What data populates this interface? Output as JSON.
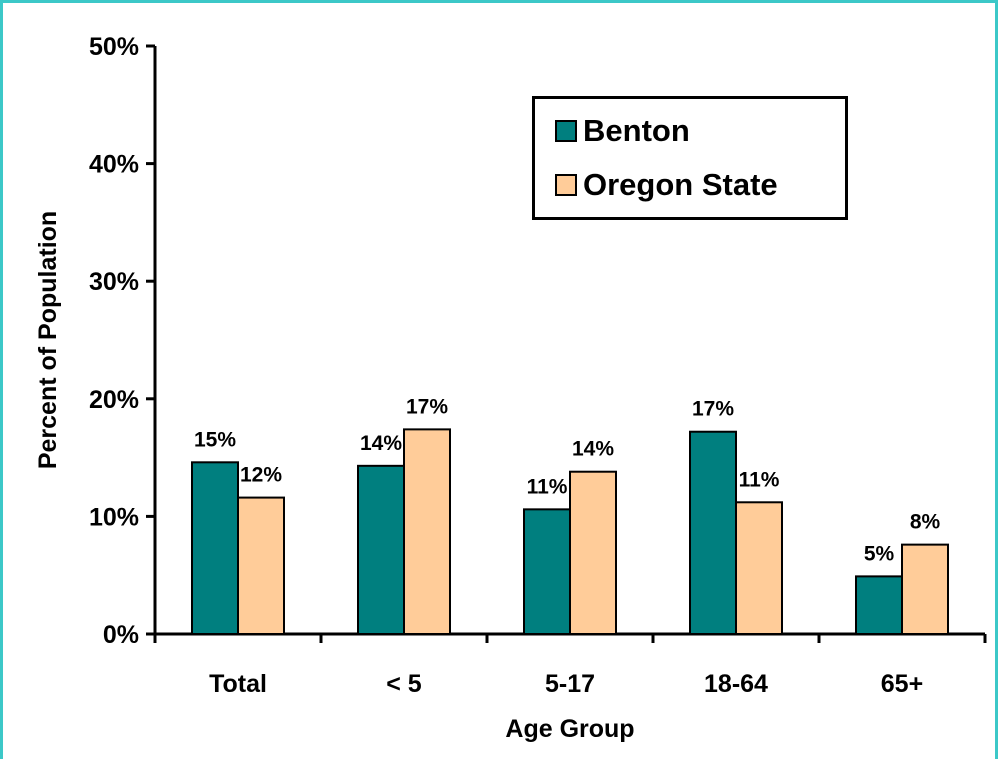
{
  "colors": {
    "benton": "#007f7f",
    "oregon": "#ffcc99",
    "frame": "#3cc8c8"
  },
  "chart_data": {
    "type": "bar",
    "title": "",
    "xlabel": "Age Group",
    "ylabel": "Percent of Population",
    "ylim": [
      0,
      50
    ],
    "yticks": [
      "0%",
      "10%",
      "20%",
      "30%",
      "40%",
      "50%"
    ],
    "categories": [
      "Total",
      "< 5",
      "5-17",
      "18-64",
      "65+"
    ],
    "series": [
      {
        "name": "Benton",
        "values": [
          14.6,
          14.3,
          10.6,
          17.2,
          4.9
        ],
        "labels": [
          "15%",
          "14%",
          "11%",
          "17%",
          "5%"
        ]
      },
      {
        "name": "Oregon State",
        "values": [
          11.6,
          17.4,
          13.8,
          11.2,
          7.6
        ],
        "labels": [
          "12%",
          "17%",
          "14%",
          "11%",
          "8%"
        ]
      }
    ],
    "legend_position": "top-right",
    "grid": false
  }
}
